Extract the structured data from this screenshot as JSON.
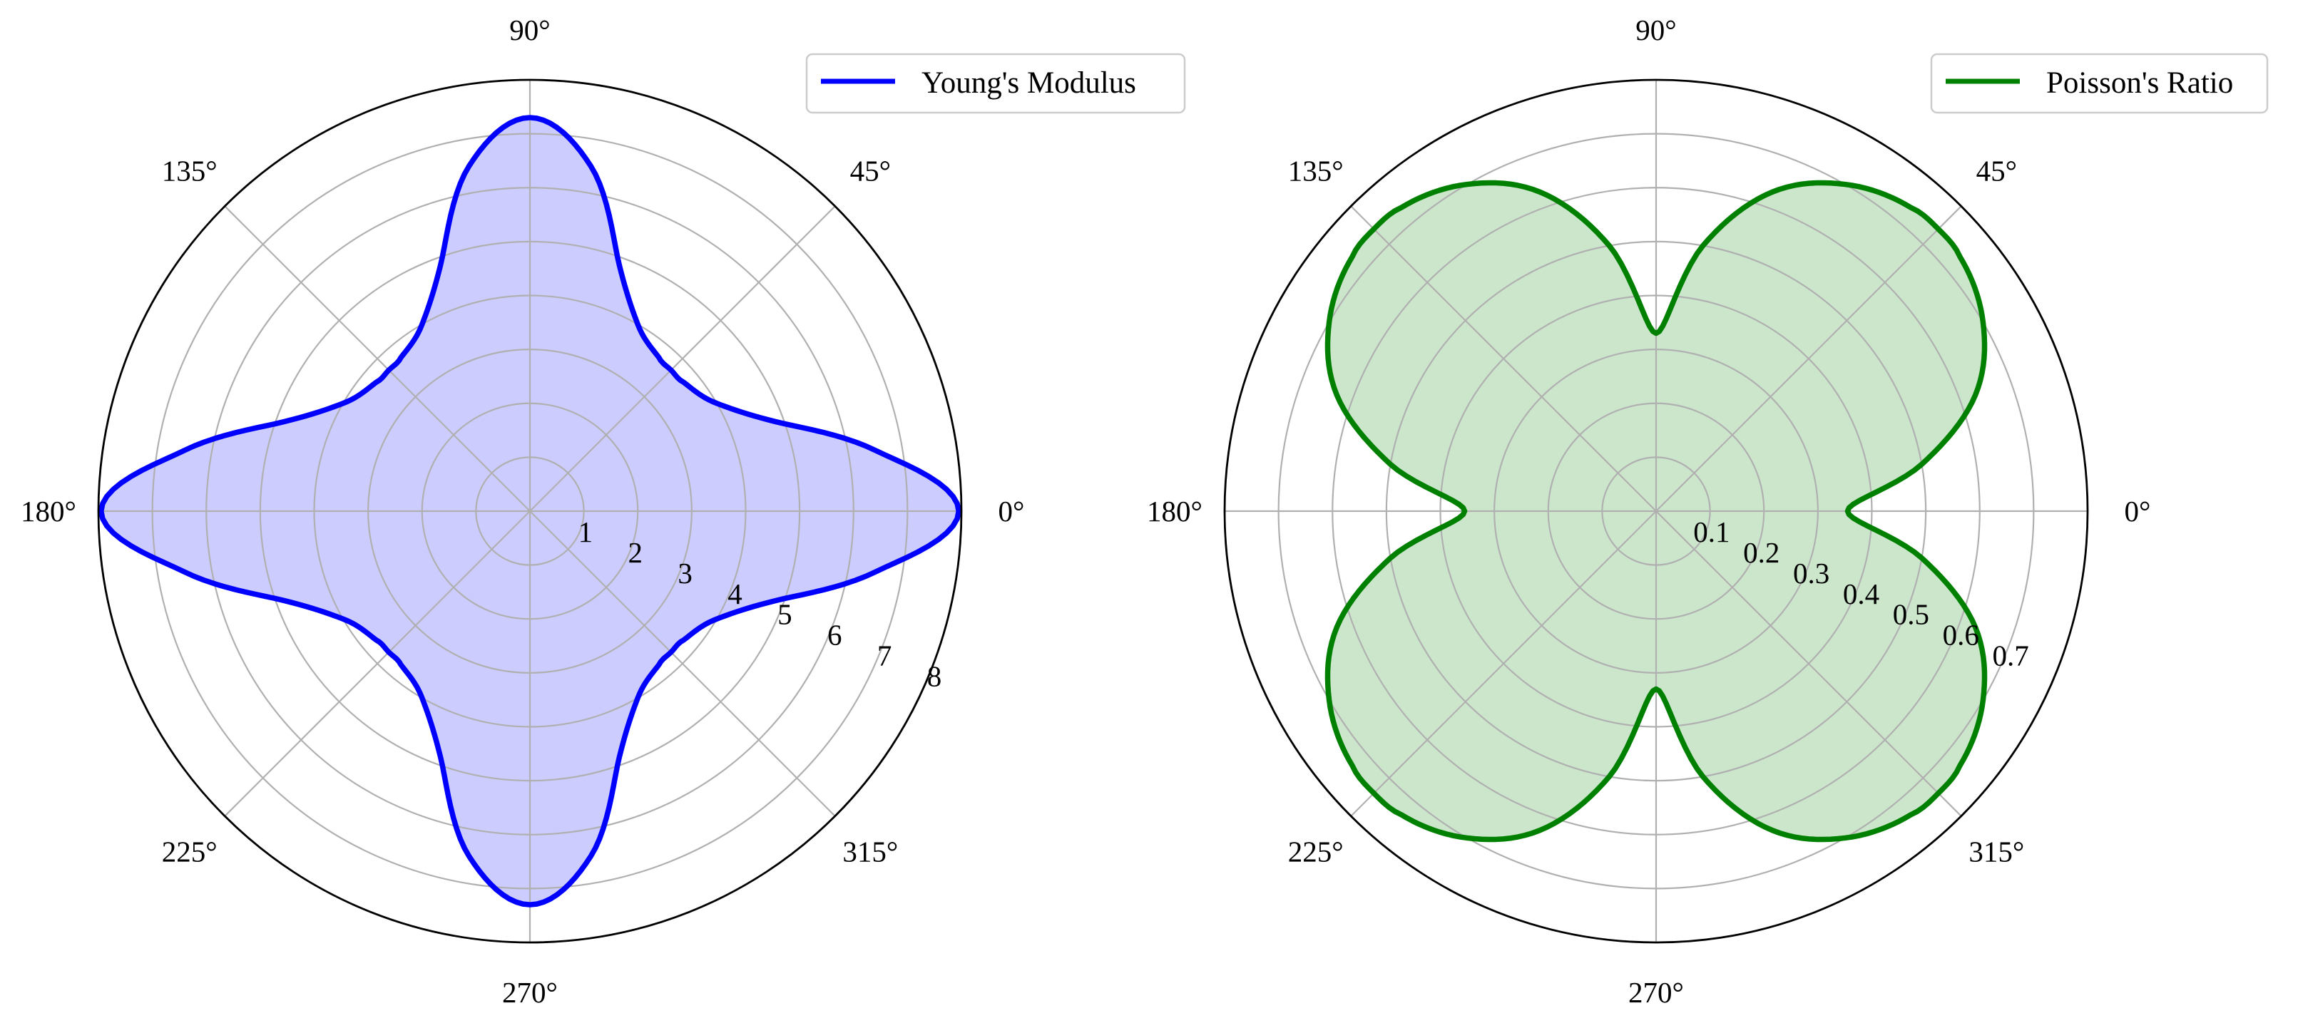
{
  "chart_data": [
    {
      "type": "polar-area",
      "angle_ticks": [
        "0°",
        "45°",
        "90°",
        "135°",
        "180°",
        "225°",
        "270°",
        "315°"
      ],
      "radial_ticks": [
        "1",
        "2",
        "3",
        "4",
        "5",
        "6",
        "7",
        "8"
      ],
      "rlim": [
        0,
        8
      ],
      "grid": true,
      "legend": {
        "placement": "top-right",
        "entries": [
          "Young's Modulus"
        ]
      },
      "series": [
        {
          "name": "Young's Modulus",
          "color": "#0000ff",
          "fill": "#ccccff",
          "x": [
            0,
            10,
            20,
            30,
            40,
            45,
            50,
            60,
            70,
            80,
            90,
            100,
            110,
            120,
            130,
            135,
            140,
            150,
            160,
            170,
            180,
            190,
            200,
            210,
            220,
            225,
            230,
            240,
            250,
            260,
            270,
            280,
            290,
            300,
            310,
            315,
            320,
            330,
            340,
            350,
            360
          ],
          "values": [
            7.95,
            6.5,
            4.85,
            4.0,
            3.72,
            3.7,
            3.72,
            4.0,
            4.85,
            6.5,
            7.3,
            6.5,
            4.85,
            4.0,
            3.72,
            3.7,
            3.72,
            4.0,
            4.85,
            6.5,
            7.95,
            6.5,
            4.85,
            4.0,
            3.72,
            3.7,
            3.72,
            4.0,
            4.85,
            6.5,
            7.3,
            6.5,
            4.85,
            4.0,
            3.72,
            3.7,
            3.72,
            4.0,
            4.85,
            6.5,
            7.95
          ]
        }
      ]
    },
    {
      "type": "polar-area",
      "angle_ticks": [
        "0°",
        "45°",
        "90°",
        "135°",
        "180°",
        "225°",
        "270°",
        "315°"
      ],
      "radial_ticks": [
        "0.1",
        "0.2",
        "0.3",
        "0.4",
        "0.5",
        "0.6",
        "0.7"
      ],
      "rlim": [
        0,
        0.8
      ],
      "grid": true,
      "legend": {
        "placement": "top-right",
        "entries": [
          "Poisson's Ratio"
        ]
      },
      "series": [
        {
          "name": "Poisson's Ratio",
          "color": "#008000",
          "fill": "#cce6cc",
          "x": [
            0,
            10,
            20,
            30,
            40,
            45,
            50,
            60,
            70,
            80,
            90,
            100,
            110,
            120,
            130,
            135,
            140,
            150,
            160,
            170,
            180,
            190,
            200,
            210,
            220,
            225,
            230,
            240,
            250,
            260,
            270,
            280,
            290,
            300,
            310,
            315,
            320,
            330,
            340,
            350,
            360
          ],
          "values": [
            0.355,
            0.5,
            0.63,
            0.7,
            0.735,
            0.74,
            0.735,
            0.7,
            0.63,
            0.5,
            0.33,
            0.5,
            0.63,
            0.7,
            0.735,
            0.74,
            0.735,
            0.7,
            0.63,
            0.5,
            0.355,
            0.5,
            0.63,
            0.7,
            0.735,
            0.74,
            0.735,
            0.7,
            0.63,
            0.5,
            0.33,
            0.5,
            0.63,
            0.7,
            0.735,
            0.74,
            0.735,
            0.7,
            0.63,
            0.5,
            0.355
          ]
        }
      ]
    }
  ]
}
